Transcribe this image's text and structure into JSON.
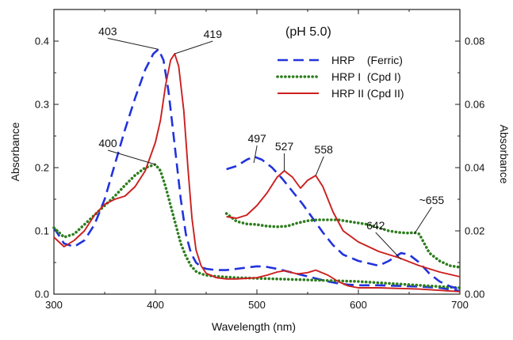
{
  "chart_data": {
    "type": "line",
    "title": "",
    "condition_label": "(pH 5.0)",
    "xlabel": "Wavelength (nm)",
    "ylabel_left": "Absorbance",
    "ylabel_right": "Absorbance",
    "xlim": [
      300,
      700
    ],
    "ylim_left": [
      0.0,
      0.45
    ],
    "ylim_right": [
      0.0,
      0.09
    ],
    "x_ticks": [
      300,
      400,
      500,
      600,
      700
    ],
    "x_tick_labels": [
      "300",
      "400",
      "500",
      "600",
      "700"
    ],
    "y_ticks_left": [
      0.0,
      0.1,
      0.2,
      0.3,
      0.4
    ],
    "y_tick_labels_left": [
      "0.0",
      "0.1",
      "0.2",
      "0.3",
      "0.4"
    ],
    "y_ticks_right": [
      0.0,
      0.02,
      0.04,
      0.06,
      0.08
    ],
    "y_tick_labels_right": [
      "0.00",
      "0.02",
      "0.04",
      "0.06",
      "0.08"
    ],
    "grid": false,
    "legend_position": "top-right",
    "legend": [
      {
        "label": "HRP    (Ferric)",
        "color": "#2233dd",
        "style": "dashed"
      },
      {
        "label": "HRP I  (Cpd I)",
        "color": "#2e7d1e",
        "style": "dotted"
      },
      {
        "label": "HRP II (Cpd II)",
        "color": "#cc1f1f",
        "style": "solid"
      }
    ],
    "annotations": [
      {
        "text": "403",
        "x": 403,
        "axis": "left",
        "y": 0.387
      },
      {
        "text": "419",
        "x": 419,
        "axis": "left",
        "y": 0.38
      },
      {
        "text": "400",
        "x": 400,
        "axis": "left",
        "y": 0.205
      },
      {
        "text": "497",
        "x": 497,
        "axis": "right",
        "y": 0.0415
      },
      {
        "text": "527",
        "x": 527,
        "axis": "right",
        "y": 0.039
      },
      {
        "text": "558",
        "x": 558,
        "axis": "right",
        "y": 0.0375
      },
      {
        "text": "642",
        "x": 642,
        "axis": "right",
        "y": 0.011
      },
      {
        "text": "~655",
        "x": 655,
        "axis": "right",
        "y": 0.019
      }
    ],
    "series": [
      {
        "name": "HRP (Ferric)",
        "axis": "left",
        "color": "#2233dd",
        "style": "dashed",
        "x": [
          300,
          310,
          320,
          330,
          340,
          350,
          360,
          370,
          380,
          390,
          398,
          403,
          408,
          413,
          418,
          425,
          430,
          435,
          440,
          445,
          450,
          460,
          470,
          480,
          490,
          500,
          510,
          520,
          530,
          540,
          550,
          560,
          570,
          580,
          590,
          600,
          620,
          640,
          660,
          680,
          700
        ],
        "values": [
          0.105,
          0.08,
          0.075,
          0.085,
          0.11,
          0.15,
          0.205,
          0.26,
          0.31,
          0.355,
          0.38,
          0.387,
          0.37,
          0.32,
          0.25,
          0.15,
          0.095,
          0.065,
          0.05,
          0.043,
          0.04,
          0.038,
          0.038,
          0.04,
          0.042,
          0.044,
          0.043,
          0.04,
          0.036,
          0.032,
          0.028,
          0.024,
          0.02,
          0.017,
          0.015,
          0.014,
          0.014,
          0.013,
          0.012,
          0.01,
          0.005
        ]
      },
      {
        "name": "HRP I (Cpd I)",
        "axis": "left",
        "color": "#2e7d1e",
        "style": "dotted",
        "x": [
          300,
          310,
          320,
          330,
          340,
          350,
          360,
          370,
          380,
          390,
          400,
          405,
          410,
          415,
          420,
          425,
          430,
          435,
          440,
          445,
          450,
          460,
          470,
          480,
          500,
          520,
          540,
          560,
          580,
          600,
          620,
          640,
          660,
          680,
          700
        ],
        "values": [
          0.105,
          0.09,
          0.095,
          0.11,
          0.125,
          0.14,
          0.155,
          0.172,
          0.188,
          0.2,
          0.205,
          0.195,
          0.17,
          0.14,
          0.11,
          0.08,
          0.06,
          0.045,
          0.036,
          0.032,
          0.03,
          0.028,
          0.027,
          0.026,
          0.025,
          0.024,
          0.023,
          0.022,
          0.021,
          0.02,
          0.018,
          0.016,
          0.014,
          0.012,
          0.01
        ]
      },
      {
        "name": "HRP II (Cpd II)",
        "axis": "left",
        "color": "#cc1f1f",
        "style": "solid",
        "x": [
          300,
          310,
          320,
          330,
          340,
          350,
          360,
          370,
          380,
          390,
          400,
          405,
          410,
          415,
          419,
          423,
          428,
          432,
          436,
          440,
          445,
          450,
          460,
          470,
          480,
          490,
          500,
          510,
          520,
          527,
          540,
          550,
          558,
          570,
          580,
          590,
          600,
          620,
          640,
          660,
          680,
          700
        ],
        "values": [
          0.09,
          0.075,
          0.085,
          0.1,
          0.125,
          0.142,
          0.15,
          0.155,
          0.17,
          0.195,
          0.24,
          0.275,
          0.33,
          0.37,
          0.38,
          0.36,
          0.29,
          0.2,
          0.12,
          0.07,
          0.045,
          0.033,
          0.026,
          0.024,
          0.024,
          0.025,
          0.026,
          0.03,
          0.035,
          0.037,
          0.032,
          0.034,
          0.038,
          0.03,
          0.02,
          0.013,
          0.01,
          0.01,
          0.009,
          0.008,
          0.006,
          0.004
        ]
      },
      {
        "name": "HRP (Ferric) x5",
        "axis": "right",
        "color": "#2233dd",
        "style": "dashed",
        "x": [
          470,
          480,
          490,
          497,
          505,
          515,
          525,
          535,
          545,
          555,
          565,
          575,
          585,
          600,
          620,
          630,
          642,
          650,
          660,
          670,
          680,
          690,
          700
        ],
        "values": [
          0.0395,
          0.0405,
          0.0425,
          0.0435,
          0.0425,
          0.04,
          0.0365,
          0.0325,
          0.0285,
          0.024,
          0.0195,
          0.0155,
          0.0125,
          0.0105,
          0.009,
          0.0105,
          0.013,
          0.0125,
          0.01,
          0.0065,
          0.004,
          0.0025,
          0.0015
        ]
      },
      {
        "name": "HRP I (Cpd I) x5",
        "axis": "right",
        "color": "#2e7d1e",
        "style": "dotted",
        "x": [
          470,
          480,
          490,
          500,
          510,
          520,
          530,
          540,
          550,
          560,
          570,
          580,
          590,
          600,
          610,
          620,
          630,
          640,
          650,
          655,
          660,
          665,
          670,
          680,
          690,
          700
        ],
        "values": [
          0.0255,
          0.023,
          0.0222,
          0.022,
          0.0215,
          0.0213,
          0.0215,
          0.0225,
          0.0232,
          0.0235,
          0.0235,
          0.0235,
          0.023,
          0.0225,
          0.022,
          0.021,
          0.02,
          0.0195,
          0.0193,
          0.0195,
          0.019,
          0.016,
          0.013,
          0.0105,
          0.009,
          0.0085
        ]
      },
      {
        "name": "HRP II (Cpd II) x5",
        "axis": "right",
        "color": "#cc1f1f",
        "style": "solid",
        "x": [
          470,
          480,
          490,
          500,
          510,
          520,
          527,
          535,
          543,
          550,
          558,
          565,
          575,
          585,
          600,
          620,
          640,
          660,
          680,
          700
        ],
        "values": [
          0.0245,
          0.024,
          0.025,
          0.028,
          0.032,
          0.037,
          0.039,
          0.037,
          0.0335,
          0.036,
          0.0375,
          0.034,
          0.026,
          0.02,
          0.0165,
          0.0135,
          0.0115,
          0.009,
          0.007,
          0.0055
        ]
      }
    ]
  }
}
